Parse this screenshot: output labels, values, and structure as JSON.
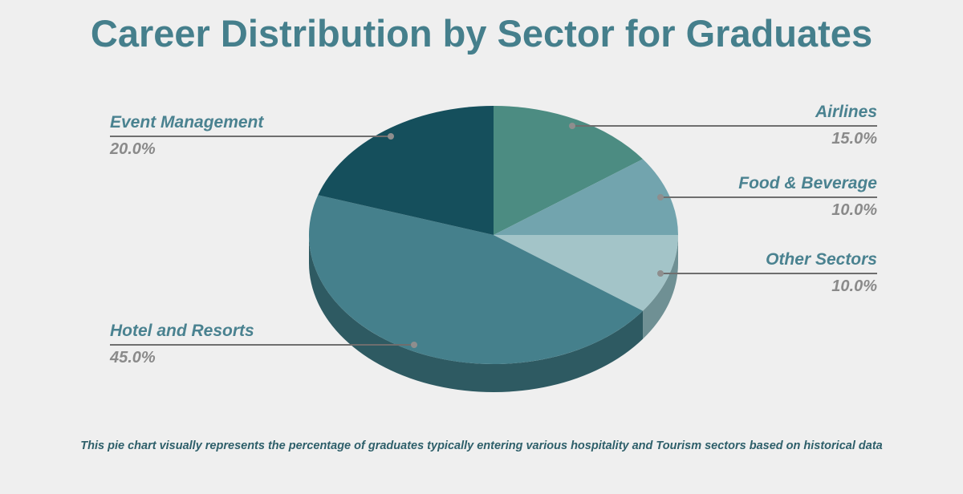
{
  "title": "Career Distribution by Sector for Graduates",
  "footer": "This pie chart visually represents the percentage of graduates typically entering various hospitality and Tourism sectors based on historical data",
  "chart_data": {
    "type": "pie",
    "style": "3d",
    "title": "Career Distribution by Sector for Graduates",
    "start": "top, clockwise",
    "slices": [
      {
        "label": "Airlines",
        "value": 15.0,
        "display": "15.0%",
        "color": "#4c8c82",
        "side_color": "#3a6c64"
      },
      {
        "label": "Food & Beverage",
        "value": 10.0,
        "display": "10.0%",
        "color": "#72a4ae",
        "side_color": "#587f87"
      },
      {
        "label": "Other Sectors",
        "value": 10.0,
        "display": "10.0%",
        "color": "#a3c4c8",
        "side_color": "#6f9094"
      },
      {
        "label": "Hotel and Resorts",
        "value": 45.0,
        "display": "45.0%",
        "color": "#45808c",
        "side_color": "#2e5a62"
      },
      {
        "label": "Event Management",
        "value": 20.0,
        "display": "20.0%",
        "color": "#154f5c",
        "side_color": "#0e3a44"
      }
    ]
  }
}
